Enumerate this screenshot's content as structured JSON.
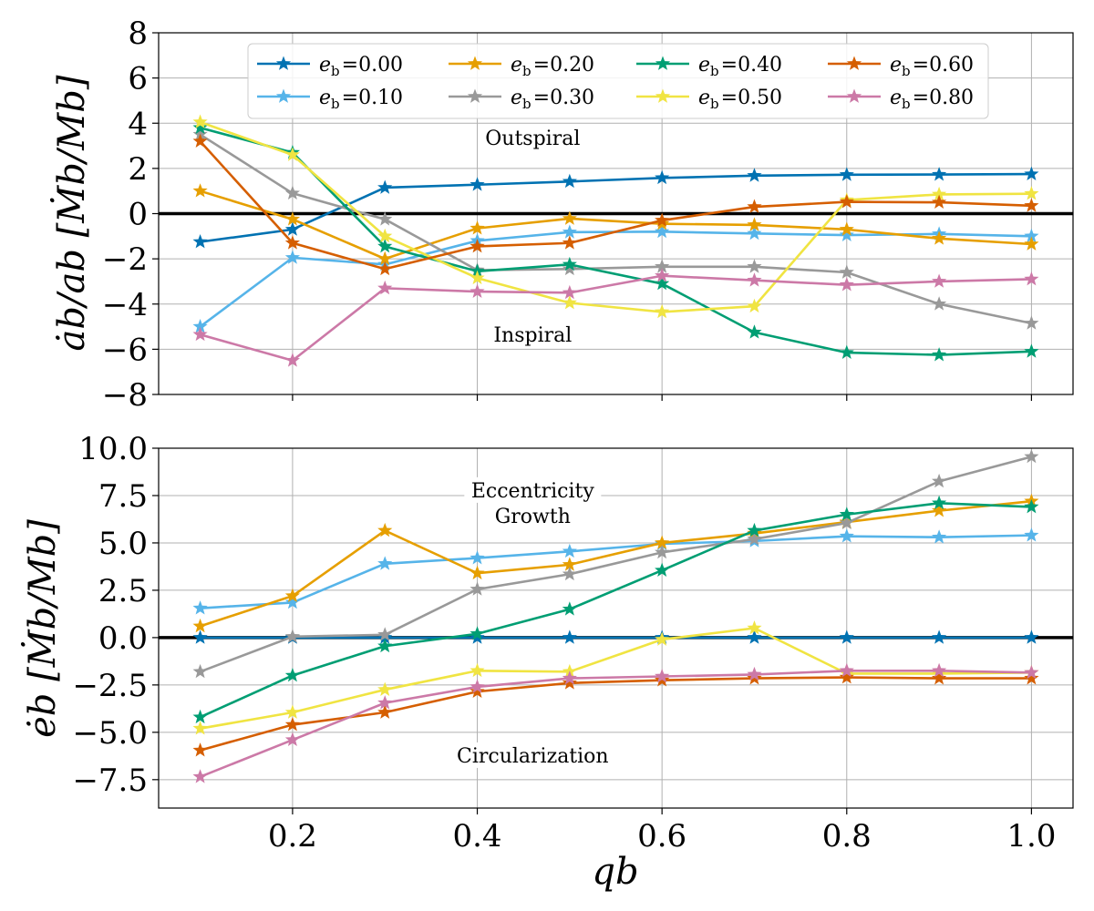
{
  "chart_data": [
    {
      "type": "line",
      "name": "semi-major-axis-rate",
      "ylabel": "ȧb/ab [Ṁb/Mb]",
      "xlim": [
        0.055,
        1.045
      ],
      "ylim": [
        -8,
        8
      ],
      "yticks": [
        -8,
        -6,
        -4,
        -2,
        0,
        2,
        4,
        6,
        8
      ],
      "ytick_labels": [
        "−8",
        "−6",
        "−4",
        "−2",
        "0",
        "2",
        "4",
        "6",
        "8"
      ],
      "grid": true,
      "zero_line": true,
      "legend": "top",
      "annotations": [
        {
          "text": "Outspiral",
          "x": 0.46,
          "y": 3.2
        },
        {
          "text": "Inspiral",
          "x": 0.46,
          "y": -5.5
        }
      ],
      "x": [
        0.1,
        0.2,
        0.3,
        0.4,
        0.5,
        0.6,
        0.7,
        0.8,
        0.9,
        1.0
      ],
      "series": [
        {
          "name": "eb=0.00",
          "label": "=0.00",
          "color": "#0072b2",
          "values": [
            -1.25,
            -0.7,
            1.15,
            1.28,
            1.42,
            1.58,
            1.68,
            1.72,
            1.73,
            1.75
          ]
        },
        {
          "name": "eb=0.10",
          "label": "=0.10",
          "color": "#56b4e9",
          "values": [
            -5.0,
            -1.95,
            -2.25,
            -1.2,
            -0.82,
            -0.8,
            -0.88,
            -0.95,
            -0.9,
            -1.0
          ]
        },
        {
          "name": "eb=0.20",
          "label": "=0.20",
          "color": "#e69f00",
          "values": [
            1.0,
            -0.25,
            -2.0,
            -0.65,
            -0.22,
            -0.45,
            -0.5,
            -0.7,
            -1.1,
            -1.35
          ]
        },
        {
          "name": "eb=0.30",
          "label": "=0.30",
          "color": "#999999",
          "values": [
            3.5,
            0.9,
            -0.25,
            -2.5,
            -2.45,
            -2.35,
            -2.35,
            -2.6,
            -4.0,
            -4.85
          ]
        },
        {
          "name": "eb=0.40",
          "label": "=0.40",
          "color": "#009e73",
          "values": [
            3.8,
            2.7,
            -1.45,
            -2.55,
            -2.25,
            -3.1,
            -5.25,
            -6.15,
            -6.25,
            -6.1
          ]
        },
        {
          "name": "eb=0.50",
          "label": "=0.50",
          "color": "#f0e442",
          "values": [
            4.05,
            2.6,
            -1.0,
            -2.85,
            -3.95,
            -4.35,
            -4.1,
            0.6,
            0.85,
            0.88
          ]
        },
        {
          "name": "eb=0.60",
          "label": "=0.60",
          "color": "#d55e00",
          "values": [
            3.2,
            -1.3,
            -2.45,
            -1.45,
            -1.3,
            -0.3,
            0.3,
            0.52,
            0.5,
            0.35
          ]
        },
        {
          "name": "eb=0.80",
          "label": "=0.80",
          "color": "#cc79a7",
          "values": [
            -5.35,
            -6.5,
            -3.3,
            -3.45,
            -3.5,
            -2.75,
            -2.95,
            -3.15,
            -3.0,
            -2.9
          ]
        }
      ]
    },
    {
      "type": "line",
      "name": "eccentricity-rate",
      "ylabel": "ėb [Ṁb/Mb]",
      "xlabel": "qb",
      "xlim": [
        0.055,
        1.045
      ],
      "ylim": [
        -9.0,
        10.0
      ],
      "yticks": [
        -7.5,
        -5.0,
        -2.5,
        0.0,
        2.5,
        5.0,
        7.5,
        10.0
      ],
      "ytick_labels": [
        "−7.5",
        "−5.0",
        "−2.5",
        "0.0",
        "2.5",
        "5.0",
        "7.5",
        "10.0"
      ],
      "xticks": [
        0.2,
        0.4,
        0.6,
        0.8,
        1.0
      ],
      "xtick_labels": [
        "0.2",
        "0.4",
        "0.6",
        "0.8",
        "1.0"
      ],
      "grid": true,
      "zero_line": true,
      "annotations": [
        {
          "text": "Eccentricity",
          "x": 0.46,
          "y": 7.6
        },
        {
          "text": "Growth",
          "x": 0.46,
          "y": 6.25
        },
        {
          "text": "Circularization",
          "x": 0.46,
          "y": -6.4
        }
      ],
      "x": [
        0.1,
        0.2,
        0.3,
        0.4,
        0.5,
        0.6,
        0.7,
        0.8,
        0.9,
        1.0
      ],
      "series": [
        {
          "name": "eb=0.00",
          "color": "#0072b2",
          "values": [
            0.0,
            0.0,
            0.0,
            0.0,
            0.0,
            0.0,
            0.0,
            0.0,
            0.0,
            0.0
          ]
        },
        {
          "name": "eb=0.10",
          "color": "#56b4e9",
          "values": [
            1.55,
            1.85,
            3.9,
            4.2,
            4.55,
            4.95,
            5.1,
            5.35,
            5.3,
            5.4
          ]
        },
        {
          "name": "eb=0.20",
          "color": "#e69f00",
          "values": [
            0.6,
            2.2,
            5.65,
            3.4,
            3.85,
            5.0,
            5.5,
            6.1,
            6.7,
            7.2
          ]
        },
        {
          "name": "eb=0.30",
          "color": "#999999",
          "values": [
            -1.8,
            0.05,
            0.15,
            2.55,
            3.35,
            4.5,
            5.2,
            6.05,
            8.25,
            9.55
          ]
        },
        {
          "name": "eb=0.40",
          "color": "#009e73",
          "values": [
            -4.2,
            -2.0,
            -0.45,
            0.2,
            1.5,
            3.55,
            5.65,
            6.5,
            7.1,
            6.9
          ]
        },
        {
          "name": "eb=0.50",
          "color": "#f0e442",
          "values": [
            -4.8,
            -3.95,
            -2.75,
            -1.75,
            -1.8,
            -0.1,
            0.5,
            -1.9,
            -1.9,
            -1.85
          ]
        },
        {
          "name": "eb=0.60",
          "color": "#d55e00",
          "values": [
            -5.95,
            -4.6,
            -3.95,
            -2.85,
            -2.4,
            -2.25,
            -2.15,
            -2.1,
            -2.15,
            -2.15
          ]
        },
        {
          "name": "eb=0.80",
          "color": "#cc79a7",
          "values": [
            -7.35,
            -5.4,
            -3.45,
            -2.6,
            -2.15,
            -2.05,
            -1.95,
            -1.75,
            -1.75,
            -1.85
          ]
        }
      ]
    }
  ],
  "legend": {
    "symbol": "e",
    "subscript": "b",
    "items": [
      "=0.00",
      "=0.10",
      "=0.20",
      "=0.30",
      "=0.40",
      "=0.50",
      "=0.60",
      "=0.80"
    ]
  }
}
